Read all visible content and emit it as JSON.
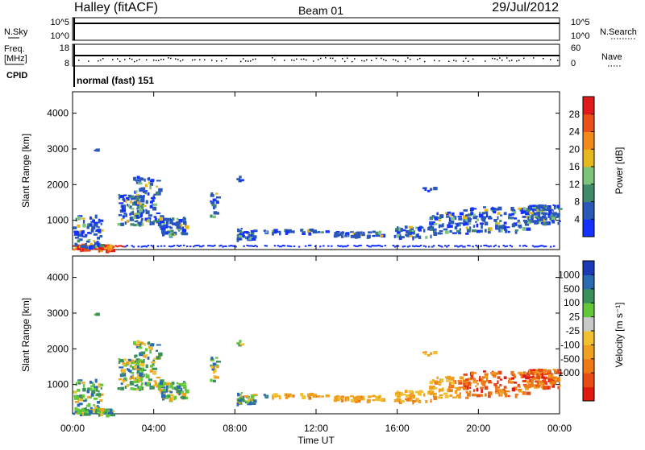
{
  "header": {
    "station": "Halley (fitACF)",
    "beam": "Beam 01",
    "date": "29/Jul/2012"
  },
  "sky_panel": {
    "left_label": "N.Sky",
    "right_label": "N.Search",
    "ticks_left": [
      "10^5",
      "10^0"
    ],
    "ticks_right": [
      "10^5",
      "10^0"
    ]
  },
  "freq_panel": {
    "left_label_line1": "Freq.",
    "left_label_line2": "[MHz]",
    "ticks_left": [
      "18",
      "8"
    ],
    "right_label": "Nave",
    "ticks_right": [
      "60",
      "0"
    ]
  },
  "cpid": {
    "label": "CPID",
    "mode": "normal (fast) 151"
  },
  "chart_data": [
    {
      "type": "heatmap",
      "panel": "power",
      "ylabel": "Slant Range [km]",
      "xlabel": "",
      "ylim": [
        180,
        4600
      ],
      "y_ticks": [
        "1000",
        "2000",
        "3000",
        "4000"
      ],
      "x_ticks": [
        "00:00",
        "04:00",
        "08:00",
        "12:00",
        "16:00",
        "20:00",
        "00:00"
      ],
      "colorbar_label": "Power [dB]",
      "colorbar_ticks": [
        "4",
        "8",
        "12",
        "16",
        "20",
        "24",
        "28"
      ],
      "colorbar_colors": [
        "#1432ff",
        "#2a58b8",
        "#3f8a6a",
        "#7cc47a",
        "#e6b820",
        "#f28a1a",
        "#e8501a",
        "#e01a1a"
      ],
      "grid": false
    },
    {
      "type": "heatmap",
      "panel": "velocity",
      "ylabel": "Slant Range [km]",
      "xlabel": "Time UT",
      "ylim": [
        180,
        4600
      ],
      "y_ticks": [
        "1000",
        "2000",
        "3000",
        "4000"
      ],
      "x_ticks": [
        "00:00",
        "04:00",
        "08:00",
        "12:00",
        "16:00",
        "20:00",
        "00:00"
      ],
      "colorbar_label": "Velocity [m s⁻¹]",
      "colorbar_ticks": [
        "1000",
        "500",
        "100",
        "25",
        "-25",
        "-100",
        "-500",
        "-1000"
      ],
      "colorbar_colors": [
        "#1a3ab8",
        "#2a6ab0",
        "#3a8f5a",
        "#62c83a",
        "#c8c8c8",
        "#f0c030",
        "#f0a020",
        "#ee7a16",
        "#e84a14",
        "#e01a10"
      ],
      "grid": false
    }
  ]
}
